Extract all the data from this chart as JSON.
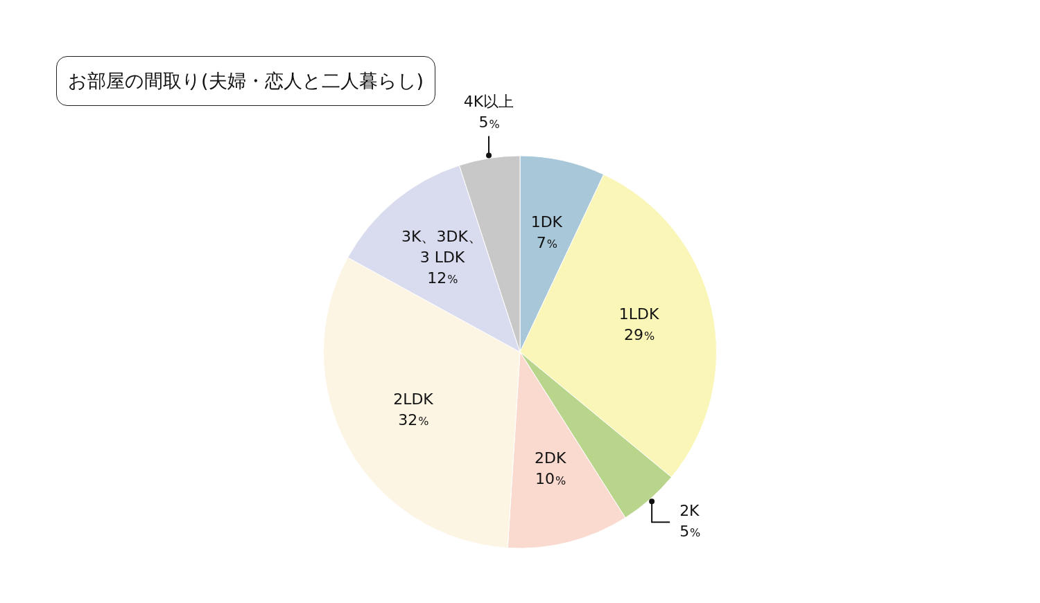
{
  "chart_data": {
    "type": "pie",
    "title": "お部屋の間取り(夫婦・恋人と二人暮らし)",
    "categories": [
      "1DK",
      "1LDK",
      "2K",
      "2DK",
      "2LDK",
      "3K、3DK、3 LDK",
      "4K以上"
    ],
    "values": [
      7,
      29,
      5,
      10,
      32,
      12,
      5
    ],
    "colors": [
      "#a8c7d8",
      "#f9f6b8",
      "#b9d58c",
      "#fad9cf",
      "#fdf5e4",
      "#d9dbee",
      "#c8c8c8"
    ],
    "value_labels": [
      "7%",
      "29%",
      "5%",
      "10%",
      "32%",
      "12%",
      "5%"
    ],
    "legend": false
  }
}
